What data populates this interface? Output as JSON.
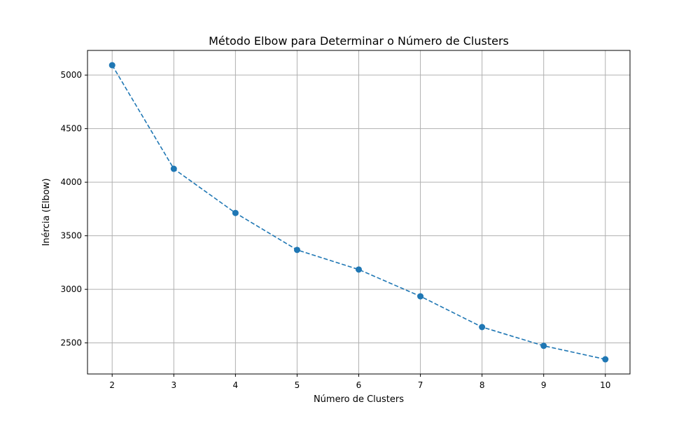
{
  "chart_data": {
    "type": "line",
    "title": "Método Elbow para Determinar o Número de Clusters",
    "xlabel": "Número de Clusters",
    "ylabel": "Inércia (Elbow)",
    "x": [
      2,
      3,
      4,
      5,
      6,
      7,
      8,
      9,
      10
    ],
    "series": [
      {
        "values": [
          5092,
          4125,
          3713,
          3368,
          3185,
          2935,
          2648,
          2473,
          2347
        ],
        "color": "#1f77b4",
        "line_style": "dashed",
        "marker": "circle"
      }
    ],
    "xticks": [
      2,
      3,
      4,
      5,
      6,
      7,
      8,
      9,
      10
    ],
    "yticks": [
      2500,
      3000,
      3500,
      4000,
      4500,
      5000
    ],
    "xlim": [
      1.6,
      10.4
    ],
    "ylim": [
      2210,
      5230
    ],
    "grid": true,
    "grid_color": "#b0b0b0",
    "axis_color": "#000000",
    "legend": "none"
  }
}
